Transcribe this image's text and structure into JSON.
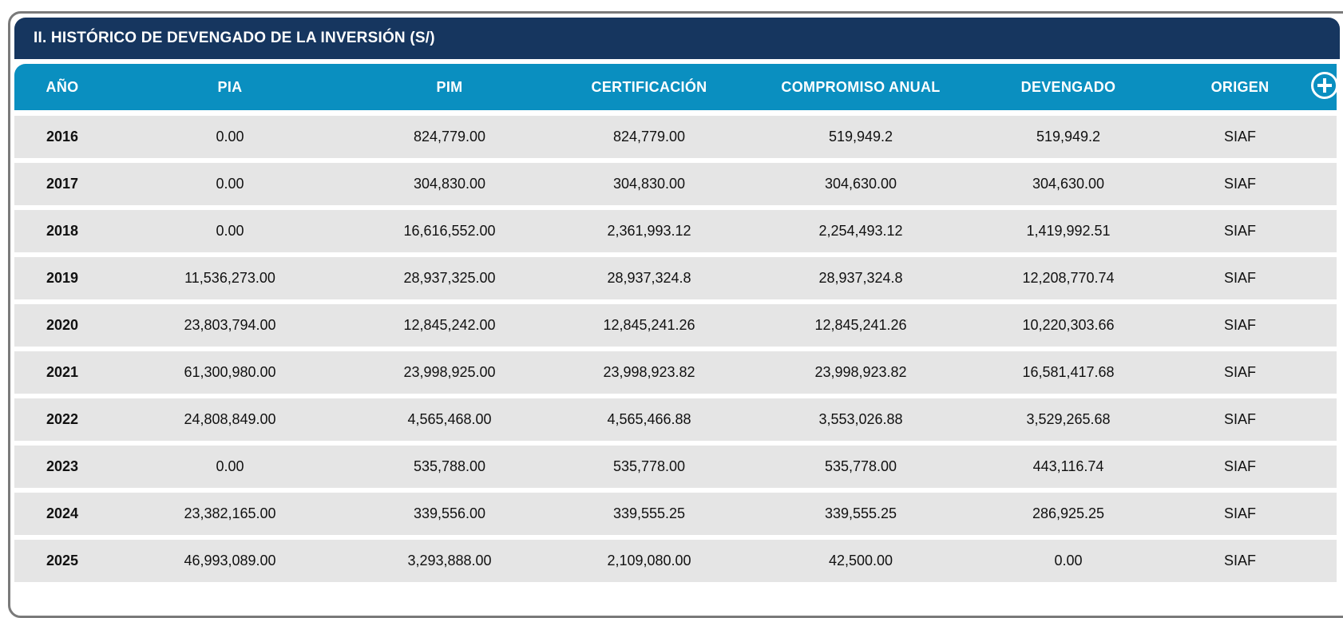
{
  "section": {
    "title": "II. HISTÓRICO DE DEVENGADO DE LA INVERSIÓN (S/)"
  },
  "table": {
    "headers": [
      "AÑO",
      "PIA",
      "PIM",
      "CERTIFICACIÓN",
      "COMPROMISO ANUAL",
      "DEVENGADO",
      "ORIGEN"
    ],
    "add_icon": "plus-circle-icon",
    "rows": [
      [
        "2016",
        "0.00",
        "824,779.00",
        "824,779.00",
        "519,949.2",
        "519,949.2",
        "SIAF"
      ],
      [
        "2017",
        "0.00",
        "304,830.00",
        "304,830.00",
        "304,630.00",
        "304,630.00",
        "SIAF"
      ],
      [
        "2018",
        "0.00",
        "16,616,552.00",
        "2,361,993.12",
        "2,254,493.12",
        "1,419,992.51",
        "SIAF"
      ],
      [
        "2019",
        "11,536,273.00",
        "28,937,325.00",
        "28,937,324.8",
        "28,937,324.8",
        "12,208,770.74",
        "SIAF"
      ],
      [
        "2020",
        "23,803,794.00",
        "12,845,242.00",
        "12,845,241.26",
        "12,845,241.26",
        "10,220,303.66",
        "SIAF"
      ],
      [
        "2021",
        "61,300,980.00",
        "23,998,925.00",
        "23,998,923.82",
        "23,998,923.82",
        "16,581,417.68",
        "SIAF"
      ],
      [
        "2022",
        "24,808,849.00",
        "4,565,468.00",
        "4,565,466.88",
        "3,553,026.88",
        "3,529,265.68",
        "SIAF"
      ],
      [
        "2023",
        "0.00",
        "535,788.00",
        "535,778.00",
        "535,778.00",
        "443,116.74",
        "SIAF"
      ],
      [
        "2024",
        "23,382,165.00",
        "339,556.00",
        "339,555.25",
        "339,555.25",
        "286,925.25",
        "SIAF"
      ],
      [
        "2025",
        "46,993,089.00",
        "3,293,888.00",
        "2,109,080.00",
        "42,500.00",
        "0.00",
        "SIAF"
      ]
    ]
  },
  "colors": {
    "title_bg": "#16365f",
    "header_bg": "#0a8fc0",
    "row_bg": "#e5e5e5"
  }
}
